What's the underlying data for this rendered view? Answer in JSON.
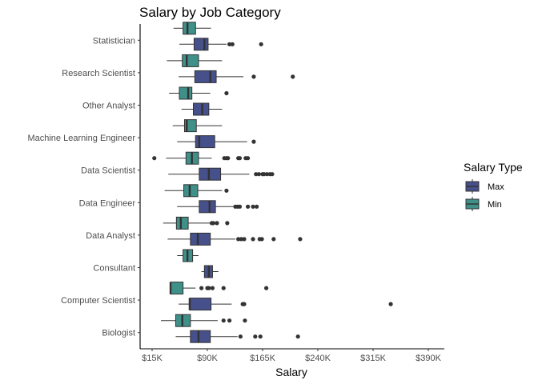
{
  "chart_data": {
    "type": "boxplot",
    "orientation": "horizontal",
    "title": "Salary by Job Category",
    "xlabel": "Salary",
    "ylabel": "",
    "xlim": [
      10000,
      400000
    ],
    "x_ticks": [
      15000,
      90000,
      165000,
      240000,
      315000,
      390000
    ],
    "x_tick_labels": [
      "$15K",
      "$90K",
      "$165K",
      "$240K",
      "$315K",
      "$390K"
    ],
    "grid": false,
    "legend": {
      "title": "Salary Type",
      "position": "right"
    },
    "categories": [
      "Statistician",
      "Research Scientist",
      "Other Analyst",
      "Machine Learning Engineer",
      "Data Scientist",
      "Data Engineer",
      "Data Analyst",
      "Consultant",
      "Computer Scientist",
      "Biologist"
    ],
    "series": [
      {
        "name": "Max",
        "color": "#46508a",
        "boxes": [
          {
            "category": "Statistician",
            "whisker_low": 52000,
            "q1": 72000,
            "median": 86000,
            "q3": 91000,
            "whisker_high": 116000,
            "outliers": [
              120000,
              124000,
              163000
            ]
          },
          {
            "category": "Research Scientist",
            "whisker_low": 51000,
            "q1": 73000,
            "median": 94000,
            "q3": 102000,
            "whisker_high": 139000,
            "outliers": [
              153000,
              206000
            ]
          },
          {
            "category": "Other Analyst",
            "whisker_low": 55000,
            "q1": 71000,
            "median": 83000,
            "q3": 92000,
            "whisker_high": 110000,
            "outliers": []
          },
          {
            "category": "Machine Learning Engineer",
            "whisker_low": 49000,
            "q1": 74000,
            "median": 79000,
            "q3": 100000,
            "whisker_high": 144000,
            "outliers": [
              153000
            ]
          },
          {
            "category": "Data Scientist",
            "whisker_low": 37000,
            "q1": 79000,
            "median": 92000,
            "q3": 108000,
            "whisker_high": 147000,
            "outliers": [
              156000,
              160000,
              165000,
              167000,
              171000,
              175000,
              178000
            ]
          },
          {
            "category": "Data Engineer",
            "whisker_low": 49000,
            "q1": 79000,
            "median": 93000,
            "q3": 101000,
            "whisker_high": 127000,
            "outliers": [
              128000,
              131000,
              134000,
              145000,
              152000,
              157000
            ]
          },
          {
            "category": "Data Analyst",
            "whisker_low": 36000,
            "q1": 67000,
            "median": 77000,
            "q3": 94000,
            "whisker_high": 128000,
            "outliers": [
              132000,
              136000,
              140000,
              152000,
              161000,
              164000,
              180000,
              216000
            ]
          },
          {
            "category": "Consultant",
            "whisker_low": 82000,
            "q1": 86000,
            "median": 92000,
            "q3": 97000,
            "whisker_high": 105000,
            "outliers": []
          },
          {
            "category": "Computer Scientist",
            "whisker_low": 51000,
            "q1": 66000,
            "median": 66000,
            "q3": 95000,
            "whisker_high": 123000,
            "outliers": [
              138000,
              140000,
              339000
            ]
          },
          {
            "category": "Biologist",
            "whisker_low": 47000,
            "q1": 67000,
            "median": 78000,
            "q3": 94000,
            "whisker_high": 131000,
            "outliers": [
              135000,
              155000,
              162000,
              213000
            ]
          }
        ]
      },
      {
        "name": "Min",
        "color": "#3e9089",
        "boxes": [
          {
            "category": "Statistician",
            "whisker_low": 44000,
            "q1": 57000,
            "median": 63000,
            "q3": 74000,
            "whisker_high": 95000,
            "outliers": []
          },
          {
            "category": "Research Scientist",
            "whisker_low": 35000,
            "q1": 56000,
            "median": 62000,
            "q3": 78000,
            "whisker_high": 110000,
            "outliers": []
          },
          {
            "category": "Other Analyst",
            "whisker_low": 38000,
            "q1": 52000,
            "median": 64000,
            "q3": 69000,
            "whisker_high": 94000,
            "outliers": [
              116000
            ]
          },
          {
            "category": "Machine Learning Engineer",
            "whisker_low": 43000,
            "q1": 59000,
            "median": 62000,
            "q3": 75000,
            "whisker_high": 110000,
            "outliers": []
          },
          {
            "category": "Data Scientist",
            "whisker_low": 34000,
            "q1": 61000,
            "median": 69000,
            "q3": 78000,
            "whisker_high": 96000,
            "outliers": [
              18000,
              113000,
              116000,
              118000,
              132000,
              134000,
              142000,
              145000
            ]
          },
          {
            "category": "Data Engineer",
            "whisker_low": 32000,
            "q1": 58000,
            "median": 66000,
            "q3": 77000,
            "whisker_high": 110000,
            "outliers": [
              116000
            ]
          },
          {
            "category": "Data Analyst",
            "whisker_low": 30000,
            "q1": 48000,
            "median": 54000,
            "q3": 64000,
            "whisker_high": 94000,
            "outliers": [
              96000,
              98000,
              103000,
              117000
            ]
          },
          {
            "category": "Consultant",
            "whisker_low": 49000,
            "q1": 57000,
            "median": 63000,
            "q3": 70000,
            "whisker_high": 78000,
            "outliers": []
          },
          {
            "category": "Computer Scientist",
            "whisker_low": 40000,
            "q1": 40000,
            "median": 40000,
            "q3": 57000,
            "whisker_high": 74000,
            "outliers": [
              82000,
              90000,
              92000,
              97000,
              112000,
              170000
            ]
          },
          {
            "category": "Biologist",
            "whisker_low": 27000,
            "q1": 47000,
            "median": 56000,
            "q3": 67000,
            "whisker_high": 104000,
            "outliers": [
              112000,
              120000,
              141000
            ]
          }
        ]
      }
    ]
  }
}
